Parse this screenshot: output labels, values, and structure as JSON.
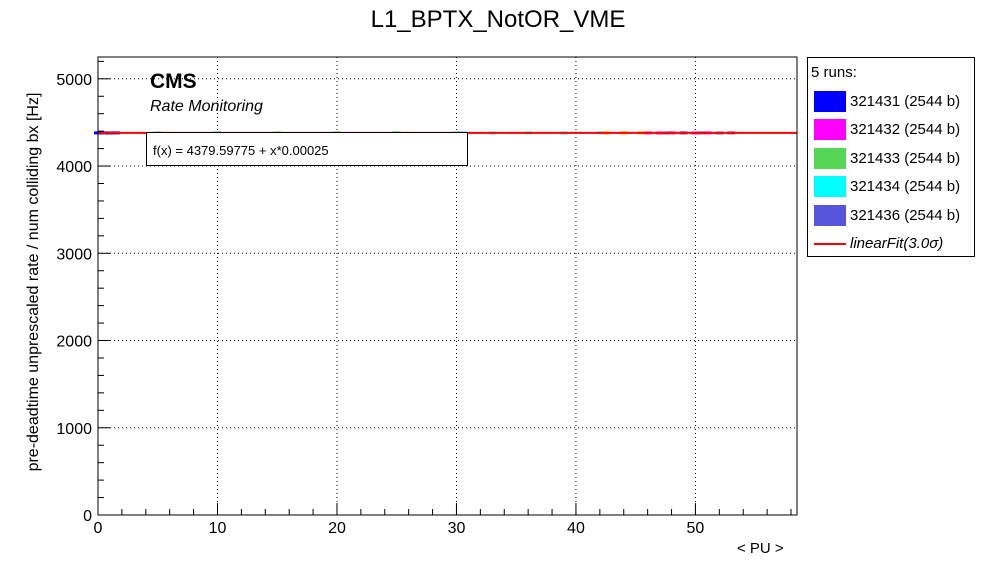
{
  "chart_data": {
    "type": "scatter",
    "title": "L1_BPTX_NotOR_VME",
    "xlabel": "< PU >",
    "ylabel": "pre-deadtime unprescaled rate / num colliding bx [Hz]",
    "xlim": [
      0,
      58.5
    ],
    "ylim": [
      0,
      5250
    ],
    "xticks": [
      0,
      10,
      20,
      30,
      40,
      50
    ],
    "yticks": [
      0,
      1000,
      2000,
      3000,
      4000,
      5000
    ],
    "grid": true,
    "annotations": {
      "cms": "CMS",
      "subtitle": "Rate Monitoring"
    },
    "legend": {
      "position": "right",
      "header": "5 runs:"
    },
    "fit": {
      "name": "linearFit",
      "label": "linearFit(3.0σ)",
      "formula": "f(x) = 4379.59775 + x*0.00025",
      "intercept": 4379.59775,
      "slope": 0.00025,
      "range": [
        0,
        58.5
      ],
      "color": "#ff0000"
    },
    "series": [
      {
        "name": "321431 (2544 b)",
        "color": "#0000ff",
        "x": [
          0,
          0.5,
          1.0,
          1.5
        ],
        "y": [
          4380,
          4380,
          4379,
          4380
        ]
      },
      {
        "name": "321432 (2544 b)",
        "color": "#ff00ff",
        "x": [
          46.0,
          47.0,
          48.0,
          49.0,
          50.0,
          51.0
        ],
        "y": [
          4380,
          4379,
          4380,
          4380,
          4379,
          4380
        ]
      },
      {
        "name": "321433 (2544 b)",
        "color": "#55d655",
        "x": [
          5.0,
          10.0,
          15.0,
          20.0,
          25.0,
          30.0
        ],
        "y": [
          4379,
          4380,
          4379,
          4380,
          4380,
          4379
        ]
      },
      {
        "name": "321434 (2544 b)",
        "color": "#00ffff",
        "x": [
          30.5,
          33.0,
          36.0,
          39.0,
          42.0,
          44.0
        ],
        "y": [
          4380,
          4379,
          4380,
          4379,
          4380,
          4380
        ]
      },
      {
        "name": "321436 (2544 b)",
        "color": "#5555dd",
        "x": [
          47.5,
          49.0,
          50.5,
          52.0,
          53.0
        ],
        "y": [
          4379,
          4380,
          4380,
          4379,
          4380
        ]
      }
    ],
    "extra_marks": [
      {
        "color": "#ffaa00",
        "x": [
          42.5,
          44.0,
          45.5
        ],
        "y": [
          4380,
          4381,
          4380
        ]
      }
    ]
  }
}
